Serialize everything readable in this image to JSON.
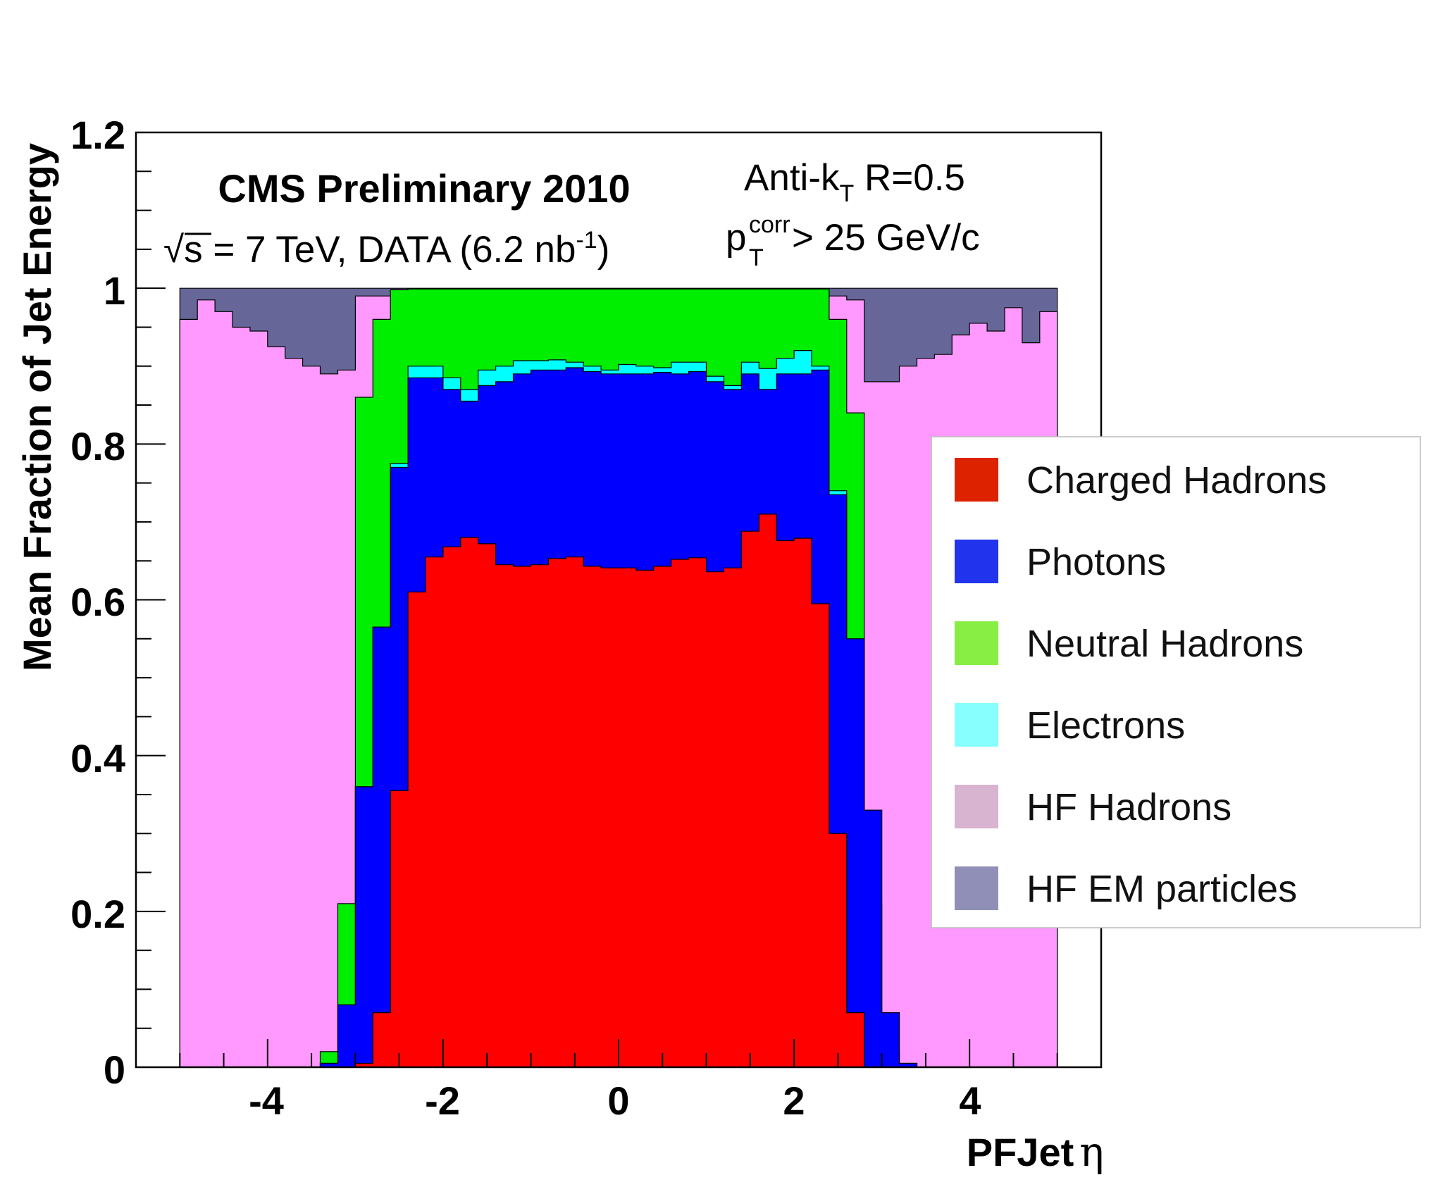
{
  "chart_data": {
    "type": "area",
    "stacking": "cumulative",
    "title": "CMS Preliminary 2010",
    "subtitle": {
      "sqrt_symbol": "√",
      "s_part": "s = 7 TeV, DATA (6.2 nb",
      "exponent": "-1",
      "close": ")"
    },
    "algorithm": {
      "main": "Anti-k",
      "sub": "T",
      "rest": " R=0.5"
    },
    "cut": {
      "p": "p",
      "sup": "corr",
      "sub": "T",
      "rest": " > 25 GeV/c"
    },
    "xlabel": "PFJet",
    "xlabel_symbol": "η",
    "ylabel": "Mean Fraction of Jet Energy",
    "xlim": [
      -5.5,
      5.5
    ],
    "ylim": [
      0,
      1.2
    ],
    "x_ticks": [
      "-4",
      "-2",
      "0",
      "2",
      "4"
    ],
    "x_tick_values": [
      -4,
      -2,
      0,
      2,
      4
    ],
    "y_ticks": [
      "0",
      "0.2",
      "0.4",
      "0.6",
      "0.8",
      "1",
      "1.2"
    ],
    "y_tick_values": [
      0,
      0.2,
      0.4,
      0.6,
      0.8,
      1.0,
      1.2
    ],
    "legend_position": "right",
    "bin_edges": [
      -5.0,
      -4.8,
      -4.6,
      -4.4,
      -4.2,
      -4.0,
      -3.8,
      -3.6,
      -3.4,
      -3.2,
      -3.0,
      -2.8,
      -2.6,
      -2.4,
      -2.2,
      -2.0,
      -1.8,
      -1.6,
      -1.4,
      -1.2,
      -1.0,
      -0.8,
      -0.6,
      -0.4,
      -0.2,
      0.0,
      0.2,
      0.4,
      0.6,
      0.8,
      1.0,
      1.2,
      1.4,
      1.6,
      1.8,
      2.0,
      2.2,
      2.4,
      2.6,
      2.8,
      3.0,
      3.2,
      3.4,
      3.6,
      3.8,
      4.0,
      4.2,
      4.4,
      4.6,
      4.8,
      5.0
    ],
    "series": [
      {
        "name": "Charged Hadrons",
        "color": "#ff0000",
        "cumulative_top": [
          0,
          0,
          0,
          0,
          0,
          0,
          0,
          0,
          0,
          0,
          0.005,
          0.07,
          0.355,
          0.61,
          0.655,
          0.668,
          0.68,
          0.672,
          0.645,
          0.643,
          0.645,
          0.653,
          0.655,
          0.643,
          0.641,
          0.641,
          0.638,
          0.643,
          0.652,
          0.654,
          0.636,
          0.641,
          0.688,
          0.71,
          0.676,
          0.679,
          0.595,
          0.3,
          0.07,
          0.0,
          0,
          0,
          0,
          0,
          0,
          0,
          0,
          0,
          0,
          0
        ]
      },
      {
        "name": "Photons",
        "color": "#0000ff",
        "cumulative_top": [
          0,
          0,
          0,
          0,
          0,
          0,
          0,
          0,
          0.005,
          0.08,
          0.36,
          0.565,
          0.77,
          0.885,
          0.885,
          0.87,
          0.855,
          0.875,
          0.88,
          0.89,
          0.895,
          0.895,
          0.898,
          0.893,
          0.89,
          0.89,
          0.89,
          0.892,
          0.89,
          0.893,
          0.88,
          0.87,
          0.89,
          0.87,
          0.89,
          0.89,
          0.895,
          0.735,
          0.55,
          0.33,
          0.07,
          0.005,
          0,
          0,
          0,
          0,
          0,
          0,
          0,
          0
        ]
      },
      {
        "name": "Electrons",
        "color": "#00ffff",
        "cumulative_top": [
          0,
          0,
          0,
          0,
          0,
          0,
          0,
          0,
          0.005,
          0.08,
          0.36,
          0.565,
          0.775,
          0.9,
          0.9,
          0.885,
          0.87,
          0.895,
          0.9,
          0.907,
          0.907,
          0.908,
          0.905,
          0.9,
          0.895,
          0.902,
          0.9,
          0.898,
          0.905,
          0.905,
          0.887,
          0.875,
          0.905,
          0.897,
          0.91,
          0.92,
          0.9,
          0.74,
          0.55,
          0.33,
          0.07,
          0.005,
          0,
          0,
          0,
          0,
          0,
          0,
          0,
          0
        ]
      },
      {
        "name": "Neutral Hadrons",
        "color": "#00ee00",
        "cumulative_top": [
          0,
          0,
          0,
          0,
          0,
          0,
          0,
          0,
          0.02,
          0.21,
          0.86,
          0.96,
          0.998,
          0.999,
          0.999,
          0.999,
          0.999,
          0.999,
          0.999,
          0.999,
          0.999,
          0.999,
          0.999,
          0.999,
          0.999,
          0.999,
          0.999,
          0.999,
          0.999,
          0.999,
          0.999,
          0.999,
          0.999,
          0.999,
          0.999,
          0.999,
          0.999,
          0.96,
          0.84,
          0.21,
          0.02,
          0,
          0,
          0,
          0,
          0,
          0,
          0,
          0,
          0
        ]
      },
      {
        "name": "HF Hadrons",
        "color": "#ff99ff",
        "cumulative_top": [
          0.96,
          0.985,
          0.97,
          0.95,
          0.945,
          0.925,
          0.91,
          0.9,
          0.89,
          0.895,
          0.99,
          0.99,
          0.998,
          0.999,
          0.999,
          0.999,
          0.999,
          0.999,
          0.999,
          0.999,
          0.999,
          0.999,
          0.999,
          0.999,
          0.999,
          0.999,
          0.999,
          0.999,
          0.999,
          0.999,
          0.999,
          0.999,
          0.999,
          0.999,
          0.999,
          0.999,
          0.999,
          0.99,
          0.985,
          0.88,
          0.88,
          0.9,
          0.91,
          0.915,
          0.94,
          0.955,
          0.945,
          0.975,
          0.93,
          0.97
        ]
      },
      {
        "name": "HF EM particles",
        "color": "#666699",
        "cumulative_top": [
          1.0,
          1.0,
          1.0,
          1.0,
          1.0,
          1.0,
          1.0,
          1.0,
          1.0,
          1.0,
          1.0,
          1.0,
          1.0,
          1.0,
          1.0,
          1.0,
          1.0,
          1.0,
          1.0,
          1.0,
          1.0,
          1.0,
          1.0,
          1.0,
          1.0,
          1.0,
          1.0,
          1.0,
          1.0,
          1.0,
          1.0,
          1.0,
          1.0,
          1.0,
          1.0,
          1.0,
          1.0,
          1.0,
          1.0,
          1.0,
          1.0,
          1.0,
          1.0,
          1.0,
          1.0,
          1.0,
          1.0,
          1.0,
          1.0,
          1.0
        ]
      }
    ],
    "legend": [
      {
        "label": "Charged Hadrons",
        "color": "#dd2200"
      },
      {
        "label": "Photons",
        "color": "#2233ee"
      },
      {
        "label": "Neutral Hadrons",
        "color": "#88ee44"
      },
      {
        "label": "Electrons",
        "color": "#88ffff"
      },
      {
        "label": "HF Hadrons",
        "color": "#d8b4d0"
      },
      {
        "label": "HF EM particles",
        "color": "#8f8fb8"
      }
    ]
  }
}
